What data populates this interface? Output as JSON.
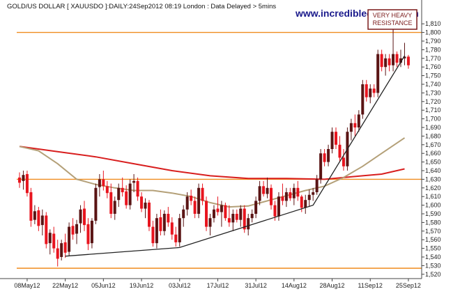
{
  "chart_data": {
    "type": "candlestick",
    "title": "GOLD/US DOLLAR [ XAUUSDO ]:DAILY:24Sep2012 08:19 London : Data Delayed > 5mins",
    "watermark": "www.incrediblecharts.com",
    "ylim": [
      1515,
      1815
    ],
    "y_ticks": [
      1520,
      1530,
      1540,
      1550,
      1560,
      1570,
      1580,
      1590,
      1600,
      1610,
      1620,
      1630,
      1640,
      1650,
      1660,
      1670,
      1680,
      1690,
      1700,
      1710,
      1720,
      1730,
      1740,
      1750,
      1760,
      1770,
      1780,
      1790,
      1800,
      1810
    ],
    "x_ticks": [
      "08May12",
      "22May12",
      "05Jun12",
      "19Jun12",
      "03Jul12",
      "17Jul12",
      "31Jul12",
      "14Aug12",
      "28Aug12",
      "11Sep12",
      "25Sep12"
    ],
    "x_tick_index": [
      2,
      12,
      22,
      32,
      42,
      52,
      62,
      72,
      82,
      92,
      102
    ],
    "n_days": 103,
    "colors": {
      "up": "#5a1414",
      "down": "#e8141e",
      "resistance": "#f08c1e",
      "ma_long": "#d81e1e",
      "ma_short": "#b4a078",
      "trendline": "#222222",
      "annotation_border": "#7a1a1a"
    },
    "horizontal_lines": [
      1800,
      1630,
      1527
    ],
    "annotation": {
      "lines": [
        "VERY HEAVY",
        "RESISTANCE"
      ],
      "target_date_index": 98,
      "target_price": 1800
    },
    "trendlines": [
      {
        "points": [
          [
            12,
            1541
          ],
          [
            42,
            1551
          ],
          [
            77,
            1600
          ],
          [
            101,
            1773
          ]
        ]
      }
    ],
    "moving_averages": [
      {
        "id": "ma_long",
        "points": [
          [
            0,
            1668
          ],
          [
            10,
            1662
          ],
          [
            20,
            1656
          ],
          [
            30,
            1648
          ],
          [
            40,
            1640
          ],
          [
            50,
            1634
          ],
          [
            60,
            1631
          ],
          [
            70,
            1631
          ],
          [
            80,
            1630
          ],
          [
            85,
            1632
          ],
          [
            90,
            1634
          ],
          [
            95,
            1636
          ],
          [
            101,
            1642
          ]
        ]
      },
      {
        "id": "ma_short",
        "points": [
          [
            0,
            1668
          ],
          [
            5,
            1663
          ],
          [
            10,
            1648
          ],
          [
            15,
            1630
          ],
          [
            20,
            1624
          ],
          [
            25,
            1620
          ],
          [
            30,
            1617
          ],
          [
            35,
            1617
          ],
          [
            40,
            1614
          ],
          [
            45,
            1610
          ],
          [
            50,
            1603
          ],
          [
            55,
            1598
          ],
          [
            60,
            1599
          ],
          [
            65,
            1605
          ],
          [
            70,
            1611
          ],
          [
            75,
            1617
          ],
          [
            80,
            1622
          ],
          [
            85,
            1632
          ],
          [
            90,
            1645
          ],
          [
            95,
            1660
          ],
          [
            101,
            1678
          ]
        ]
      }
    ],
    "candles": [
      {
        "o": 1632,
        "h": 1638,
        "l": 1620,
        "c": 1626
      },
      {
        "o": 1628,
        "h": 1640,
        "l": 1618,
        "c": 1635
      },
      {
        "o": 1636,
        "h": 1640,
        "l": 1610,
        "c": 1614
      },
      {
        "o": 1615,
        "h": 1620,
        "l": 1575,
        "c": 1582
      },
      {
        "o": 1583,
        "h": 1600,
        "l": 1578,
        "c": 1593
      },
      {
        "o": 1594,
        "h": 1598,
        "l": 1570,
        "c": 1576
      },
      {
        "o": 1577,
        "h": 1595,
        "l": 1565,
        "c": 1588
      },
      {
        "o": 1588,
        "h": 1592,
        "l": 1550,
        "c": 1555
      },
      {
        "o": 1556,
        "h": 1572,
        "l": 1543,
        "c": 1568
      },
      {
        "o": 1567,
        "h": 1575,
        "l": 1545,
        "c": 1550
      },
      {
        "o": 1550,
        "h": 1560,
        "l": 1529,
        "c": 1538
      },
      {
        "o": 1540,
        "h": 1560,
        "l": 1536,
        "c": 1556
      },
      {
        "o": 1557,
        "h": 1567,
        "l": 1539,
        "c": 1545
      },
      {
        "o": 1546,
        "h": 1580,
        "l": 1541,
        "c": 1575
      },
      {
        "o": 1576,
        "h": 1585,
        "l": 1560,
        "c": 1566
      },
      {
        "o": 1567,
        "h": 1583,
        "l": 1555,
        "c": 1578
      },
      {
        "o": 1579,
        "h": 1600,
        "l": 1568,
        "c": 1595
      },
      {
        "o": 1596,
        "h": 1605,
        "l": 1570,
        "c": 1577
      },
      {
        "o": 1578,
        "h": 1585,
        "l": 1548,
        "c": 1555
      },
      {
        "o": 1556,
        "h": 1585,
        "l": 1550,
        "c": 1582
      },
      {
        "o": 1582,
        "h": 1625,
        "l": 1578,
        "c": 1620
      },
      {
        "o": 1621,
        "h": 1636,
        "l": 1610,
        "c": 1630
      },
      {
        "o": 1630,
        "h": 1640,
        "l": 1617,
        "c": 1622
      },
      {
        "o": 1622,
        "h": 1628,
        "l": 1608,
        "c": 1614
      },
      {
        "o": 1615,
        "h": 1625,
        "l": 1585,
        "c": 1590
      },
      {
        "o": 1590,
        "h": 1610,
        "l": 1583,
        "c": 1605
      },
      {
        "o": 1606,
        "h": 1625,
        "l": 1598,
        "c": 1620
      },
      {
        "o": 1620,
        "h": 1632,
        "l": 1610,
        "c": 1615
      },
      {
        "o": 1616,
        "h": 1623,
        "l": 1596,
        "c": 1600
      },
      {
        "o": 1600,
        "h": 1630,
        "l": 1595,
        "c": 1625
      },
      {
        "o": 1626,
        "h": 1636,
        "l": 1615,
        "c": 1628
      },
      {
        "o": 1628,
        "h": 1632,
        "l": 1605,
        "c": 1610
      },
      {
        "o": 1610,
        "h": 1615,
        "l": 1592,
        "c": 1596
      },
      {
        "o": 1596,
        "h": 1608,
        "l": 1585,
        "c": 1603
      },
      {
        "o": 1603,
        "h": 1606,
        "l": 1570,
        "c": 1575
      },
      {
        "o": 1575,
        "h": 1582,
        "l": 1552,
        "c": 1556
      },
      {
        "o": 1556,
        "h": 1590,
        "l": 1550,
        "c": 1585
      },
      {
        "o": 1586,
        "h": 1595,
        "l": 1565,
        "c": 1570
      },
      {
        "o": 1570,
        "h": 1594,
        "l": 1565,
        "c": 1590
      },
      {
        "o": 1590,
        "h": 1598,
        "l": 1575,
        "c": 1580
      },
      {
        "o": 1580,
        "h": 1586,
        "l": 1560,
        "c": 1566
      },
      {
        "o": 1566,
        "h": 1575,
        "l": 1552,
        "c": 1557
      },
      {
        "o": 1557,
        "h": 1590,
        "l": 1552,
        "c": 1585
      },
      {
        "o": 1585,
        "h": 1600,
        "l": 1575,
        "c": 1595
      },
      {
        "o": 1595,
        "h": 1615,
        "l": 1588,
        "c": 1610
      },
      {
        "o": 1611,
        "h": 1618,
        "l": 1600,
        "c": 1605
      },
      {
        "o": 1605,
        "h": 1610,
        "l": 1585,
        "c": 1590
      },
      {
        "o": 1590,
        "h": 1625,
        "l": 1585,
        "c": 1620
      },
      {
        "o": 1620,
        "h": 1625,
        "l": 1600,
        "c": 1605
      },
      {
        "o": 1605,
        "h": 1610,
        "l": 1570,
        "c": 1575
      },
      {
        "o": 1575,
        "h": 1590,
        "l": 1565,
        "c": 1585
      },
      {
        "o": 1585,
        "h": 1600,
        "l": 1580,
        "c": 1595
      },
      {
        "o": 1596,
        "h": 1610,
        "l": 1588,
        "c": 1592
      },
      {
        "o": 1592,
        "h": 1605,
        "l": 1575,
        "c": 1600
      },
      {
        "o": 1600,
        "h": 1603,
        "l": 1582,
        "c": 1585
      },
      {
        "o": 1585,
        "h": 1600,
        "l": 1575,
        "c": 1580
      },
      {
        "o": 1580,
        "h": 1595,
        "l": 1570,
        "c": 1590
      },
      {
        "o": 1590,
        "h": 1595,
        "l": 1580,
        "c": 1583
      },
      {
        "o": 1583,
        "h": 1600,
        "l": 1575,
        "c": 1596
      },
      {
        "o": 1596,
        "h": 1600,
        "l": 1568,
        "c": 1572
      },
      {
        "o": 1572,
        "h": 1590,
        "l": 1565,
        "c": 1585
      },
      {
        "o": 1585,
        "h": 1595,
        "l": 1580,
        "c": 1590
      },
      {
        "o": 1590,
        "h": 1610,
        "l": 1585,
        "c": 1605
      },
      {
        "o": 1605,
        "h": 1628,
        "l": 1600,
        "c": 1622
      },
      {
        "o": 1622,
        "h": 1628,
        "l": 1610,
        "c": 1613
      },
      {
        "o": 1613,
        "h": 1632,
        "l": 1608,
        "c": 1620
      },
      {
        "o": 1620,
        "h": 1624,
        "l": 1595,
        "c": 1600
      },
      {
        "o": 1600,
        "h": 1605,
        "l": 1582,
        "c": 1587
      },
      {
        "o": 1587,
        "h": 1615,
        "l": 1582,
        "c": 1610
      },
      {
        "o": 1610,
        "h": 1625,
        "l": 1600,
        "c": 1605
      },
      {
        "o": 1605,
        "h": 1620,
        "l": 1598,
        "c": 1615
      },
      {
        "o": 1615,
        "h": 1620,
        "l": 1605,
        "c": 1608
      },
      {
        "o": 1608,
        "h": 1625,
        "l": 1600,
        "c": 1620
      },
      {
        "o": 1620,
        "h": 1628,
        "l": 1605,
        "c": 1610
      },
      {
        "o": 1610,
        "h": 1612,
        "l": 1592,
        "c": 1597
      },
      {
        "o": 1597,
        "h": 1612,
        "l": 1590,
        "c": 1606
      },
      {
        "o": 1606,
        "h": 1618,
        "l": 1598,
        "c": 1612
      },
      {
        "o": 1612,
        "h": 1620,
        "l": 1605,
        "c": 1615
      },
      {
        "o": 1615,
        "h": 1635,
        "l": 1612,
        "c": 1630
      },
      {
        "o": 1630,
        "h": 1665,
        "l": 1625,
        "c": 1660
      },
      {
        "o": 1660,
        "h": 1665,
        "l": 1645,
        "c": 1650
      },
      {
        "o": 1650,
        "h": 1670,
        "l": 1645,
        "c": 1665
      },
      {
        "o": 1665,
        "h": 1690,
        "l": 1660,
        "c": 1685
      },
      {
        "o": 1685,
        "h": 1690,
        "l": 1665,
        "c": 1670
      },
      {
        "o": 1670,
        "h": 1680,
        "l": 1650,
        "c": 1655
      },
      {
        "o": 1655,
        "h": 1665,
        "l": 1640,
        "c": 1645
      },
      {
        "o": 1645,
        "h": 1690,
        "l": 1640,
        "c": 1685
      },
      {
        "o": 1685,
        "h": 1700,
        "l": 1675,
        "c": 1695
      },
      {
        "o": 1695,
        "h": 1705,
        "l": 1680,
        "c": 1690
      },
      {
        "o": 1690,
        "h": 1710,
        "l": 1685,
        "c": 1705
      },
      {
        "o": 1705,
        "h": 1745,
        "l": 1700,
        "c": 1740
      },
      {
        "o": 1740,
        "h": 1745,
        "l": 1720,
        "c": 1725
      },
      {
        "o": 1725,
        "h": 1740,
        "l": 1718,
        "c": 1735
      },
      {
        "o": 1735,
        "h": 1740,
        "l": 1725,
        "c": 1730
      },
      {
        "o": 1730,
        "h": 1780,
        "l": 1725,
        "c": 1775
      },
      {
        "o": 1775,
        "h": 1780,
        "l": 1755,
        "c": 1760
      },
      {
        "o": 1760,
        "h": 1775,
        "l": 1750,
        "c": 1770
      },
      {
        "o": 1770,
        "h": 1775,
        "l": 1755,
        "c": 1762
      },
      {
        "o": 1762,
        "h": 1800,
        "l": 1755,
        "c": 1775
      },
      {
        "o": 1775,
        "h": 1778,
        "l": 1760,
        "c": 1765
      },
      {
        "o": 1765,
        "h": 1780,
        "l": 1760,
        "c": 1770
      },
      {
        "o": 1770,
        "h": 1788,
        "l": 1762,
        "c": 1772
      },
      {
        "o": 1772,
        "h": 1774,
        "l": 1758,
        "c": 1762
      }
    ]
  }
}
